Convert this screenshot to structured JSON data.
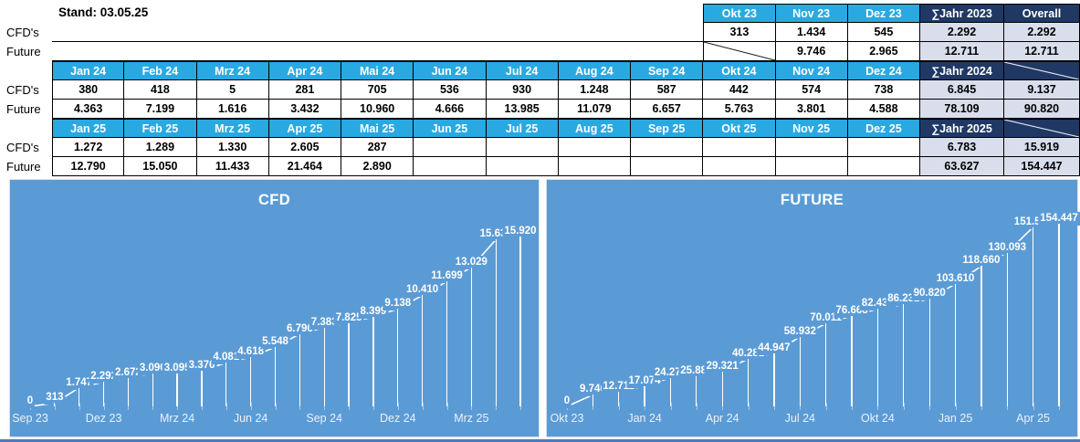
{
  "meta": {
    "stand": "Stand: 03.05.25"
  },
  "colors": {
    "header_cyan": "#29A9E1",
    "header_dark": "#1F3864",
    "sum_cell_bg": "#D8DEEC",
    "chart_bg": "#5B9BD5",
    "bottom_strip": "#4E7DB5"
  },
  "tables": [
    {
      "year": "2023",
      "start_col": 9,
      "months": [
        "",
        "",
        "",
        "",
        "",
        "",
        "",
        "",
        "",
        "Okt 23",
        "Nov 23",
        "Dez 23"
      ],
      "sum_header": "∑Jahr 2023",
      "overall_header": "Overall",
      "overall_diagonal": false,
      "rows": [
        {
          "label": "CFD's",
          "cells": [
            "",
            "",
            "",
            "",
            "",
            "",
            "",
            "",
            "",
            "313",
            "1.434",
            "545"
          ],
          "diagonal_col": -1,
          "sum": "2.292",
          "overall": "2.292"
        },
        {
          "label": "Future",
          "cells": [
            "",
            "",
            "",
            "",
            "",
            "",
            "",
            "",
            "",
            "",
            "9.746",
            "2.965"
          ],
          "diagonal_col": 9,
          "sum": "12.711",
          "overall": "12.711"
        }
      ]
    },
    {
      "year": "2024",
      "start_col": 0,
      "months": [
        "Jan 24",
        "Feb 24",
        "Mrz 24",
        "Apr 24",
        "Mai 24",
        "Jun 24",
        "Jul 24",
        "Aug 24",
        "Sep 24",
        "Okt 24",
        "Nov 24",
        "Dez 24"
      ],
      "sum_header": "∑Jahr 2024",
      "overall_header": "",
      "overall_diagonal": true,
      "rows": [
        {
          "label": "CFD's",
          "cells": [
            "380",
            "418",
            "5",
            "281",
            "705",
            "536",
            "930",
            "1.248",
            "587",
            "442",
            "574",
            "738"
          ],
          "diagonal_col": -1,
          "sum": "6.845",
          "overall": "9.137"
        },
        {
          "label": "Future",
          "cells": [
            "4.363",
            "7.199",
            "1.616",
            "3.432",
            "10.960",
            "4.666",
            "13.985",
            "11.079",
            "6.657",
            "5.763",
            "3.801",
            "4.588"
          ],
          "diagonal_col": -1,
          "sum": "78.109",
          "overall": "90.820"
        }
      ]
    },
    {
      "year": "2025",
      "start_col": 0,
      "months": [
        "Jan 25",
        "Feb 25",
        "Mrz 25",
        "Apr 25",
        "Mai 25",
        "Jun 25",
        "Jul 25",
        "Aug 25",
        "Sep 25",
        "Okt 25",
        "Nov 25",
        "Dez 25"
      ],
      "sum_header": "∑Jahr 2025",
      "overall_header": "",
      "overall_diagonal": true,
      "rows": [
        {
          "label": "CFD's",
          "cells": [
            "1.272",
            "1.289",
            "1.330",
            "2.605",
            "287",
            "",
            "",
            "",
            "",
            "",
            "",
            ""
          ],
          "diagonal_col": -1,
          "sum": "6.783",
          "overall": "15.919"
        },
        {
          "label": "Future",
          "cells": [
            "12.790",
            "15.050",
            "11.433",
            "21.464",
            "2.890",
            "",
            "",
            "",
            "",
            "",
            "",
            ""
          ],
          "diagonal_col": -1,
          "sum": "63.627",
          "overall": "154.447"
        }
      ]
    }
  ],
  "chart_data": [
    {
      "type": "line",
      "title": "CFD",
      "x": [
        "Sep 23",
        "Okt 23",
        "Nov 23",
        "Dez 23",
        "Jan 24",
        "Feb 24",
        "Mrz 24",
        "Apr 24",
        "Mai 24",
        "Jun 24",
        "Jul 24",
        "Aug 24",
        "Sep 24",
        "Okt 24",
        "Nov 24",
        "Dez 24",
        "Jan 25",
        "Feb 25",
        "Mrz 25",
        "Apr 25",
        "Mai 25"
      ],
      "values": [
        0,
        313,
        1747,
        2292,
        2672,
        3090,
        3095,
        3376,
        4081,
        4618,
        5548,
        6796,
        7383,
        7825,
        8399,
        9138,
        10410,
        11699,
        13029,
        15633,
        15920
      ],
      "labels": [
        "0",
        "313",
        "1.747",
        "2.292",
        "2.672",
        "3.090",
        "3.095",
        "3.376",
        "4.081",
        "4.618",
        "5.548",
        "6.796",
        "7.383",
        "7.825",
        "8.399",
        "9.138",
        "10.410",
        "11.699",
        "13.029",
        "15.633",
        "15.920"
      ],
      "tick_labels": [
        "Sep 23",
        "Dez 23",
        "Mrz 24",
        "Jun 24",
        "Sep 24",
        "Dez 24",
        "Mrz 25"
      ],
      "tick_every": 3,
      "ylim": [
        0,
        16000
      ],
      "grid": false,
      "legend": "none"
    },
    {
      "type": "line",
      "title": "FUTURE",
      "x": [
        "Okt 23",
        "Nov 23",
        "Dez 23",
        "Jan 24",
        "Feb 24",
        "Mrz 24",
        "Apr 24",
        "Mai 24",
        "Jun 24",
        "Jul 24",
        "Aug 24",
        "Sep 24",
        "Okt 24",
        "Nov 24",
        "Dez 24",
        "Jan 25",
        "Feb 25",
        "Mrz 25",
        "Apr 25",
        "Mai 25"
      ],
      "values": [
        0,
        9746,
        12711,
        17074,
        24273,
        25889,
        29321,
        40281,
        44947,
        58932,
        70011,
        76668,
        82431,
        86232,
        90820,
        103610,
        118660,
        130093,
        151557,
        154447
      ],
      "labels": [
        "0",
        "9.746",
        "12.711",
        "17.074",
        "24.273",
        "25.889",
        "29.321",
        "40.281",
        "44.947",
        "58.932",
        "70.011",
        "76.668",
        "82.431",
        "86.232",
        "90.820",
        "103.610",
        "118.660",
        "130.093",
        "151.557",
        "154.447"
      ],
      "tick_labels": [
        "Okt 23",
        "Jan 24",
        "Apr 24",
        "Jul 24",
        "Okt 24",
        "Jan 25",
        "Apr 25"
      ],
      "tick_every": 3,
      "ylim": [
        0,
        160000
      ],
      "grid": false,
      "legend": "none"
    }
  ]
}
